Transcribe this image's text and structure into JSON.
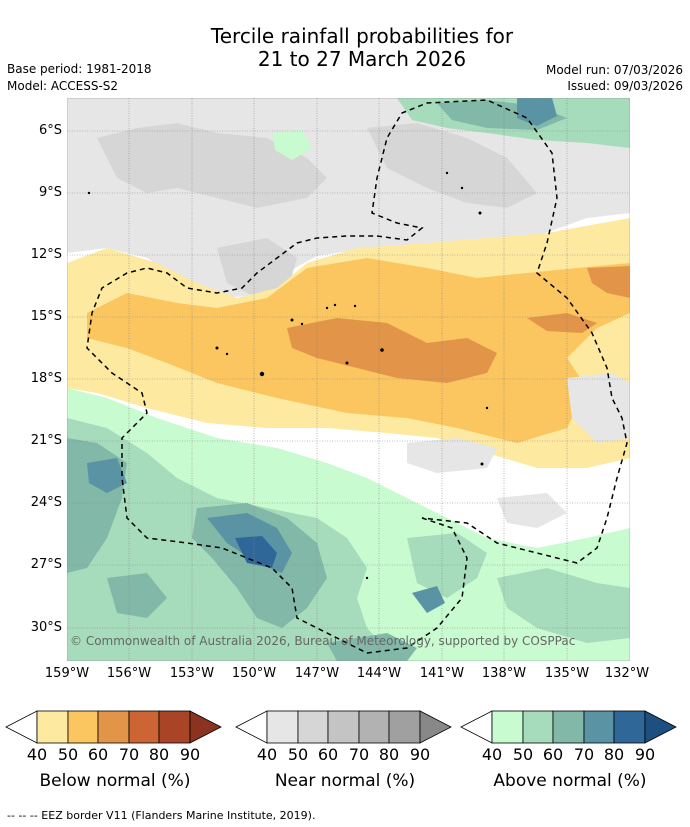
{
  "title": {
    "line1": "Tercile rainfall probabilities for",
    "line2": "21 to 27 March 2026"
  },
  "meta": {
    "base_period": "Base period: 1981-2018",
    "model": "Model: ACCESS-S2",
    "model_run": "Model run: 07/03/2026",
    "issued": "Issued: 09/03/2026"
  },
  "map": {
    "lat_labels": [
      "6°S",
      "9°S",
      "12°S",
      "15°S",
      "18°S",
      "21°S",
      "24°S",
      "27°S",
      "30°S"
    ],
    "lon_labels": [
      "159°W",
      "156°W",
      "153°W",
      "150°W",
      "147°W",
      "144°W",
      "141°W",
      "138°W",
      "135°W",
      "132°W"
    ],
    "copyright": "© Commonwealth of Australia 2026, Bureau of Meteorology, supported by COSPPac"
  },
  "colorbars": [
    {
      "title": "Below normal (%)",
      "ticks": [
        "40",
        "50",
        "60",
        "70",
        "80",
        "90"
      ],
      "colors": [
        "#ffffff",
        "#fde9a0",
        "#fbc55f",
        "#e29449",
        "#cc6433",
        "#aa4426",
        "#8a3320"
      ]
    },
    {
      "title": "Near normal (%)",
      "ticks": [
        "40",
        "50",
        "60",
        "70",
        "80",
        "90"
      ],
      "colors": [
        "#ffffff",
        "#e6e6e6",
        "#d6d6d6",
        "#c4c4c4",
        "#b2b2b2",
        "#a0a0a0",
        "#888888"
      ]
    },
    {
      "title": "Above normal (%)",
      "ticks": [
        "40",
        "50",
        "60",
        "70",
        "80",
        "90"
      ],
      "colors": [
        "#ffffff",
        "#c9fbd0",
        "#a6dcbb",
        "#81b8a8",
        "#5a93a3",
        "#2f6799",
        "#1d4f80"
      ]
    }
  ],
  "footnote": "-- -- -- EEZ border V11 (Flanders Marine Institute, 2019).",
  "colors": {
    "below_light": "#fde9a0",
    "below_mid": "#fbc55f",
    "below_dark": "#e29449",
    "near_light": "#e6e6e6",
    "near_mid": "#d6d6d6",
    "above_light": "#c9fbd0",
    "above_mid": "#a6dcbb",
    "above_dark": "#81b8a8",
    "above_darker": "#5a93a3",
    "above_darkest": "#2f6799"
  }
}
